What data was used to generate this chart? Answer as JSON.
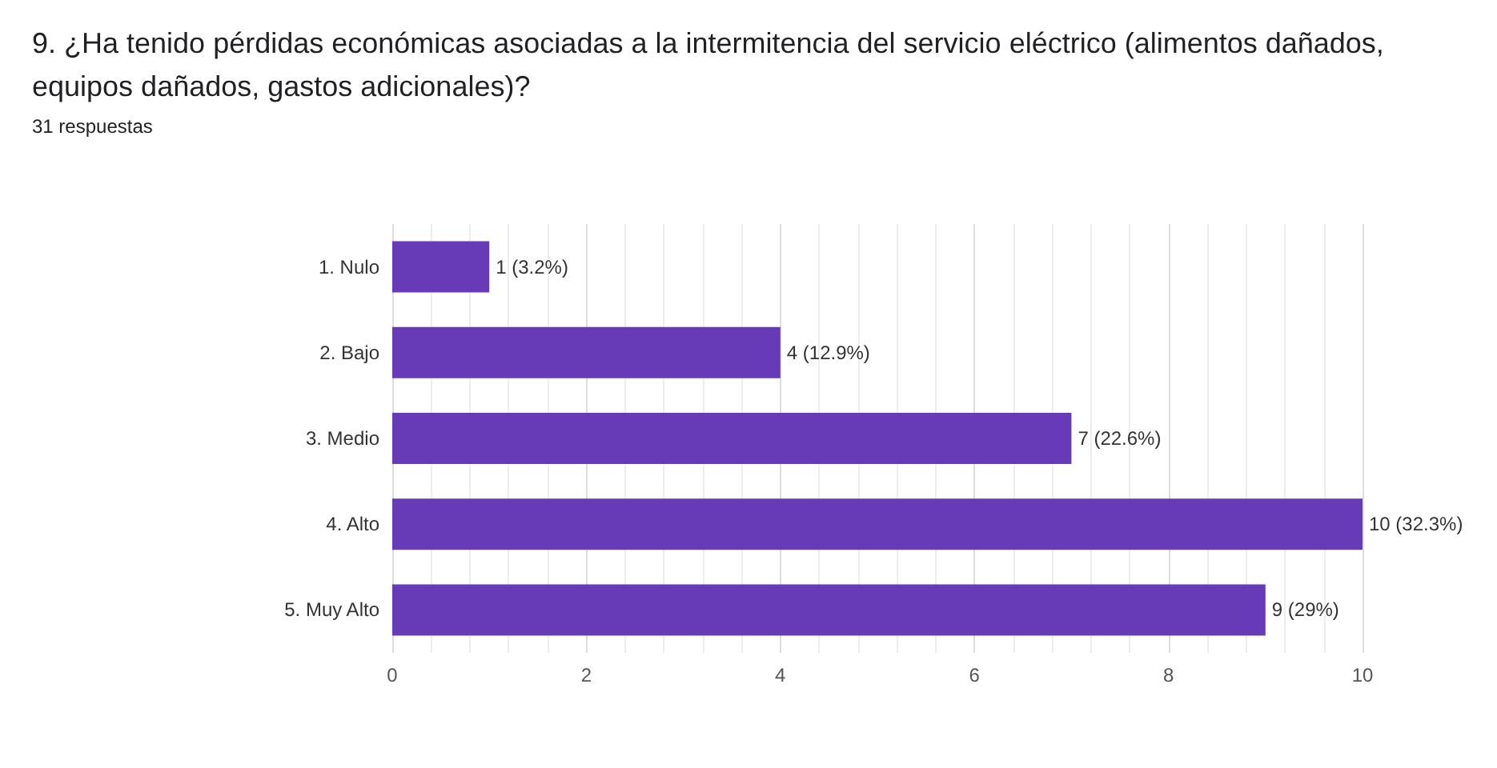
{
  "chart_data": {
    "type": "bar",
    "orientation": "horizontal",
    "title": "9. ¿Ha tenido pérdidas económicas asociadas a la intermitencia del servicio eléctrico (alimentos dañados, equipos dañados, gastos adicionales)?",
    "subtitle": "31 respuestas",
    "categories": [
      "1. Nulo",
      "2. Bajo",
      "3. Medio",
      "4. Alto",
      "5. Muy Alto"
    ],
    "values": [
      1,
      4,
      7,
      10,
      9
    ],
    "value_labels": [
      "1 (3.2%)",
      "4 (12.9%)",
      "7 (22.6%)",
      "10 (32.3%)",
      "9 (29%)"
    ],
    "color": "#673ab7",
    "xlim": [
      0,
      10
    ],
    "xticks": [
      0,
      2,
      4,
      6,
      8,
      10
    ],
    "grid": "x"
  }
}
